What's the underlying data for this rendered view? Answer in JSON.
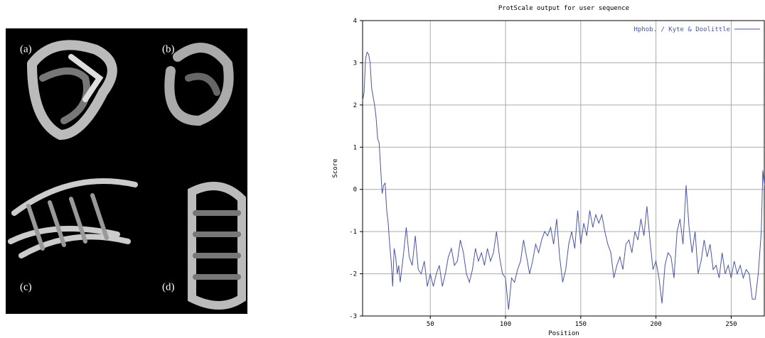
{
  "panel_labels": [
    "(a)",
    "(b)",
    "(c)",
    "(d)"
  ],
  "chart_data": {
    "type": "line",
    "title": "ProtScale output for user sequence",
    "xlabel": "Position",
    "ylabel": "Score",
    "xlim": [
      5,
      272
    ],
    "ylim": [
      -3,
      4
    ],
    "xticks": [
      50,
      100,
      150,
      200,
      250
    ],
    "yticks": [
      -3,
      -2,
      -1,
      0,
      1,
      2,
      3,
      4
    ],
    "grid": true,
    "legend": "upper right",
    "x": [
      5,
      6,
      7,
      8,
      9,
      10,
      11,
      12,
      13,
      14,
      15,
      16,
      17,
      18,
      19,
      20,
      21,
      22,
      23,
      24,
      25,
      26,
      27,
      28,
      29,
      30,
      32,
      34,
      36,
      38,
      40,
      42,
      44,
      46,
      48,
      50,
      52,
      54,
      56,
      58,
      60,
      62,
      64,
      66,
      68,
      70,
      72,
      74,
      76,
      78,
      80,
      82,
      84,
      86,
      88,
      90,
      92,
      94,
      96,
      98,
      100,
      102,
      104,
      106,
      108,
      110,
      112,
      114,
      116,
      118,
      120,
      122,
      124,
      126,
      128,
      130,
      132,
      134,
      136,
      138,
      140,
      142,
      144,
      146,
      148,
      150,
      152,
      154,
      156,
      158,
      160,
      162,
      164,
      166,
      168,
      170,
      172,
      174,
      176,
      178,
      180,
      182,
      184,
      186,
      188,
      190,
      192,
      194,
      196,
      198,
      200,
      202,
      204,
      206,
      208,
      210,
      212,
      214,
      216,
      218,
      220,
      222,
      224,
      226,
      228,
      230,
      232,
      234,
      236,
      238,
      240,
      242,
      244,
      246,
      248,
      250,
      252,
      254,
      256,
      258,
      260,
      262,
      264,
      266,
      268,
      270,
      271,
      272
    ],
    "series": [
      {
        "name": "Hphob. / Kyte & Doolittle",
        "color": "#4a55a8",
        "values": [
          2.1,
          2.3,
          3.1,
          3.25,
          3.2,
          3.0,
          2.4,
          2.2,
          2.0,
          1.7,
          1.2,
          1.1,
          0.5,
          -0.1,
          0.1,
          0.15,
          -0.5,
          -0.8,
          -1.3,
          -1.7,
          -2.3,
          -1.4,
          -1.6,
          -2.0,
          -1.8,
          -2.2,
          -1.6,
          -0.9,
          -1.6,
          -1.8,
          -1.1,
          -1.9,
          -2.0,
          -1.7,
          -2.3,
          -2.0,
          -2.3,
          -2.0,
          -1.8,
          -2.3,
          -2.0,
          -1.6,
          -1.4,
          -1.8,
          -1.7,
          -1.2,
          -1.5,
          -2.0,
          -2.2,
          -1.9,
          -1.4,
          -1.7,
          -1.5,
          -1.8,
          -1.4,
          -1.7,
          -1.5,
          -1.0,
          -1.6,
          -2.0,
          -2.1,
          -2.85,
          -2.1,
          -2.2,
          -1.9,
          -1.7,
          -1.2,
          -1.6,
          -2.0,
          -1.7,
          -1.3,
          -1.5,
          -1.2,
          -1.0,
          -1.1,
          -0.9,
          -1.3,
          -0.7,
          -1.6,
          -2.2,
          -1.9,
          -1.3,
          -1.0,
          -1.4,
          -0.5,
          -1.3,
          -0.8,
          -1.1,
          -0.5,
          -0.9,
          -0.6,
          -0.8,
          -0.6,
          -1.0,
          -1.3,
          -1.5,
          -2.1,
          -1.8,
          -1.6,
          -1.9,
          -1.3,
          -1.2,
          -1.5,
          -1.0,
          -1.2,
          -0.7,
          -1.1,
          -0.4,
          -1.2,
          -1.9,
          -1.7,
          -2.1,
          -2.7,
          -1.8,
          -1.5,
          -1.6,
          -2.1,
          -1.0,
          -0.7,
          -1.3,
          0.1,
          -0.9,
          -1.5,
          -1.0,
          -2.0,
          -1.7,
          -1.2,
          -1.6,
          -1.3,
          -1.9,
          -1.8,
          -2.1,
          -1.5,
          -2.0,
          -1.8,
          -2.1,
          -1.7,
          -2.0,
          -1.8,
          -2.1,
          -1.9,
          -2.0,
          -2.6,
          -2.6,
          -2.0,
          -1.0,
          0.45,
          0.1
        ]
      }
    ]
  }
}
